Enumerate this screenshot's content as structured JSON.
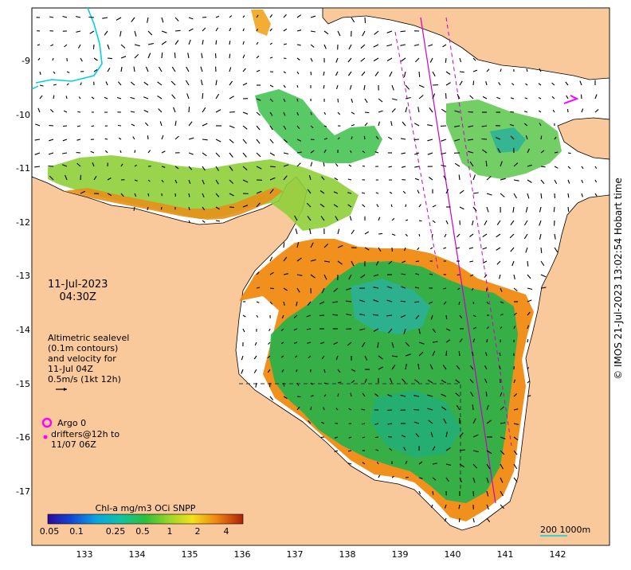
{
  "x_ticks": [
    "133",
    "134",
    "135",
    "136",
    "137",
    "138",
    "139",
    "140",
    "141",
    "142"
  ],
  "y_ticks": [
    "-9",
    "-10",
    "-11",
    "-12",
    "-13",
    "-14",
    "-15",
    "-16",
    "-17"
  ],
  "date": {
    "line1": "11-Jul-2023",
    "line2": "04:30Z"
  },
  "altimetry": {
    "line1": "Altimetric sealevel",
    "line2": "(0.1m contours)",
    "line3": "and velocity for",
    "line4": "11-Jul 04Z",
    "line5": "0.5m/s (1kt 12h)"
  },
  "argo": {
    "label": "Argo 0"
  },
  "drifters": {
    "line1": "drifters@12h to",
    "line2": "11/07 06Z"
  },
  "colorbar": {
    "title": "Chl-a mg/m3 OCi SNPP",
    "ticks": [
      "0.05",
      "0.1",
      "0.25",
      "0.5",
      "1",
      "2",
      "4"
    ]
  },
  "scale": {
    "label": "200  1000m"
  },
  "credit": "© IMOS 21-Jul-2023 13:02:54 Hobart time",
  "colors": {
    "land": "#f9c99b",
    "argo": "#ff00ff",
    "track": "#cc00cc",
    "cyan": "#00d0e0",
    "chl_low": "#2ab09a",
    "chl_mid": "#22b24c",
    "chl_high": "#f08a10"
  }
}
